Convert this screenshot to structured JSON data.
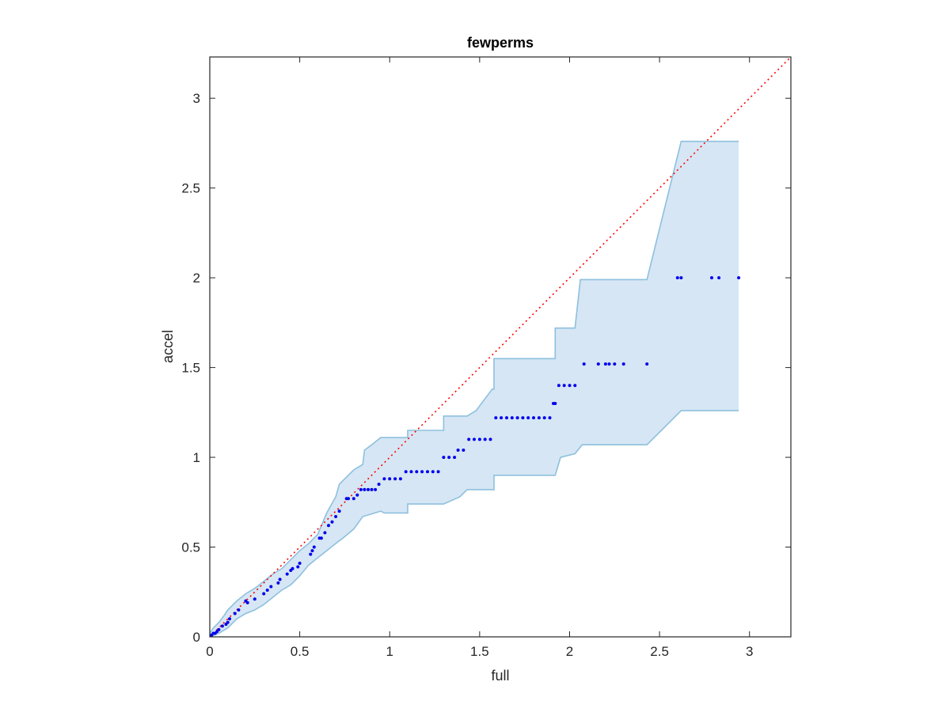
{
  "chart_data": {
    "type": "scatter",
    "title": "fewperms",
    "xlabel": "full",
    "ylabel": "accel",
    "xlim": [
      0,
      3.23
    ],
    "ylim": [
      0,
      3.23
    ],
    "xticks": [
      0,
      0.5,
      1,
      1.5,
      2,
      2.5,
      3
    ],
    "yticks": [
      0,
      0.5,
      1,
      1.5,
      2,
      2.5,
      3
    ],
    "xtick_labels": [
      "0",
      "0.5",
      "1",
      "1.5",
      "2",
      "2.5",
      "3"
    ],
    "ytick_labels": [
      "0",
      "0.5",
      "1",
      "1.5",
      "2",
      "2.5",
      "3"
    ],
    "grid": false,
    "colors": {
      "points": "#0000ee",
      "reference_line": "#ff0000",
      "band_fill": "#d6e6f4",
      "band_edge": "#8ec0de",
      "axes": "#262626"
    },
    "band_upper": [
      [
        0,
        0.02
      ],
      [
        0.02,
        0.05
      ],
      [
        0.05,
        0.08
      ],
      [
        0.08,
        0.12
      ],
      [
        0.1,
        0.15
      ],
      [
        0.15,
        0.2
      ],
      [
        0.2,
        0.24
      ],
      [
        0.25,
        0.27
      ],
      [
        0.3,
        0.31
      ],
      [
        0.35,
        0.35
      ],
      [
        0.4,
        0.38
      ],
      [
        0.45,
        0.43
      ],
      [
        0.5,
        0.48
      ],
      [
        0.55,
        0.52
      ],
      [
        0.6,
        0.57
      ],
      [
        0.65,
        0.69
      ],
      [
        0.7,
        0.78
      ],
      [
        0.72,
        0.85
      ],
      [
        0.76,
        0.89
      ],
      [
        0.8,
        0.93
      ],
      [
        0.85,
        0.96
      ],
      [
        0.86,
        1.04
      ],
      [
        0.9,
        1.07
      ],
      [
        0.95,
        1.11
      ],
      [
        1.1,
        1.11
      ],
      [
        1.1,
        1.15
      ],
      [
        1.3,
        1.15
      ],
      [
        1.3,
        1.23
      ],
      [
        1.43,
        1.23
      ],
      [
        1.48,
        1.26
      ],
      [
        1.57,
        1.38
      ],
      [
        1.58,
        1.38
      ],
      [
        1.58,
        1.55
      ],
      [
        1.92,
        1.55
      ],
      [
        1.92,
        1.72
      ],
      [
        2.03,
        1.72
      ],
      [
        2.06,
        1.99
      ],
      [
        2.43,
        1.99
      ],
      [
        2.62,
        2.76
      ],
      [
        2.94,
        2.76
      ]
    ],
    "band_lower": [
      [
        2.94,
        1.26
      ],
      [
        2.62,
        1.26
      ],
      [
        2.43,
        1.07
      ],
      [
        2.07,
        1.07
      ],
      [
        2.03,
        1.02
      ],
      [
        1.95,
        1.0
      ],
      [
        1.92,
        0.9
      ],
      [
        1.58,
        0.9
      ],
      [
        1.58,
        0.82
      ],
      [
        1.43,
        0.82
      ],
      [
        1.39,
        0.78
      ],
      [
        1.3,
        0.74
      ],
      [
        1.1,
        0.74
      ],
      [
        1.1,
        0.69
      ],
      [
        0.97,
        0.69
      ],
      [
        0.95,
        0.7
      ],
      [
        0.85,
        0.67
      ],
      [
        0.8,
        0.6
      ],
      [
        0.74,
        0.55
      ],
      [
        0.7,
        0.52
      ],
      [
        0.65,
        0.48
      ],
      [
        0.6,
        0.44
      ],
      [
        0.55,
        0.4
      ],
      [
        0.5,
        0.34
      ],
      [
        0.45,
        0.29
      ],
      [
        0.4,
        0.26
      ],
      [
        0.35,
        0.22
      ],
      [
        0.3,
        0.18
      ],
      [
        0.25,
        0.15
      ],
      [
        0.2,
        0.13
      ],
      [
        0.15,
        0.1
      ],
      [
        0.1,
        0.05
      ],
      [
        0.05,
        0.02
      ],
      [
        0,
        0
      ]
    ],
    "reference_line": [
      [
        0,
        0
      ],
      [
        3.23,
        3.23
      ]
    ],
    "points": [
      [
        0.0,
        0.0
      ],
      [
        0.01,
        0.01
      ],
      [
        0.02,
        0.02
      ],
      [
        0.03,
        0.02
      ],
      [
        0.04,
        0.03
      ],
      [
        0.05,
        0.04
      ],
      [
        0.07,
        0.06
      ],
      [
        0.09,
        0.07
      ],
      [
        0.1,
        0.08
      ],
      [
        0.11,
        0.1
      ],
      [
        0.14,
        0.13
      ],
      [
        0.16,
        0.15
      ],
      [
        0.2,
        0.2
      ],
      [
        0.21,
        0.19
      ],
      [
        0.25,
        0.21
      ],
      [
        0.3,
        0.24
      ],
      [
        0.32,
        0.26
      ],
      [
        0.34,
        0.28
      ],
      [
        0.38,
        0.3
      ],
      [
        0.39,
        0.32
      ],
      [
        0.43,
        0.35
      ],
      [
        0.45,
        0.37
      ],
      [
        0.46,
        0.38
      ],
      [
        0.49,
        0.39
      ],
      [
        0.5,
        0.41
      ],
      [
        0.56,
        0.46
      ],
      [
        0.57,
        0.48
      ],
      [
        0.58,
        0.5
      ],
      [
        0.61,
        0.55
      ],
      [
        0.62,
        0.55
      ],
      [
        0.64,
        0.58
      ],
      [
        0.66,
        0.62
      ],
      [
        0.68,
        0.64
      ],
      [
        0.7,
        0.67
      ],
      [
        0.72,
        0.7
      ],
      [
        0.76,
        0.77
      ],
      [
        0.77,
        0.77
      ],
      [
        0.8,
        0.77
      ],
      [
        0.82,
        0.79
      ],
      [
        0.84,
        0.82
      ],
      [
        0.86,
        0.82
      ],
      [
        0.88,
        0.82
      ],
      [
        0.9,
        0.82
      ],
      [
        0.92,
        0.82
      ],
      [
        0.94,
        0.85
      ],
      [
        0.97,
        0.88
      ],
      [
        1.0,
        0.88
      ],
      [
        1.03,
        0.88
      ],
      [
        1.06,
        0.88
      ],
      [
        1.09,
        0.92
      ],
      [
        1.12,
        0.92
      ],
      [
        1.15,
        0.92
      ],
      [
        1.18,
        0.92
      ],
      [
        1.21,
        0.92
      ],
      [
        1.24,
        0.92
      ],
      [
        1.27,
        0.92
      ],
      [
        1.3,
        1.0
      ],
      [
        1.33,
        1.0
      ],
      [
        1.36,
        1.0
      ],
      [
        1.38,
        1.04
      ],
      [
        1.41,
        1.04
      ],
      [
        1.44,
        1.1
      ],
      [
        1.47,
        1.1
      ],
      [
        1.5,
        1.1
      ],
      [
        1.53,
        1.1
      ],
      [
        1.56,
        1.1
      ],
      [
        1.59,
        1.22
      ],
      [
        1.62,
        1.22
      ],
      [
        1.65,
        1.22
      ],
      [
        1.68,
        1.22
      ],
      [
        1.71,
        1.22
      ],
      [
        1.74,
        1.22
      ],
      [
        1.77,
        1.22
      ],
      [
        1.8,
        1.22
      ],
      [
        1.83,
        1.22
      ],
      [
        1.86,
        1.22
      ],
      [
        1.89,
        1.22
      ],
      [
        1.91,
        1.3
      ],
      [
        1.92,
        1.3
      ],
      [
        1.94,
        1.4
      ],
      [
        1.97,
        1.4
      ],
      [
        2.0,
        1.4
      ],
      [
        2.03,
        1.4
      ],
      [
        2.08,
        1.52
      ],
      [
        2.16,
        1.52
      ],
      [
        2.2,
        1.52
      ],
      [
        2.22,
        1.52
      ],
      [
        2.25,
        1.52
      ],
      [
        2.3,
        1.52
      ],
      [
        2.43,
        1.52
      ],
      [
        2.6,
        2.0
      ],
      [
        2.62,
        2.0
      ],
      [
        2.79,
        2.0
      ],
      [
        2.83,
        2.0
      ],
      [
        2.94,
        2.0
      ]
    ]
  }
}
